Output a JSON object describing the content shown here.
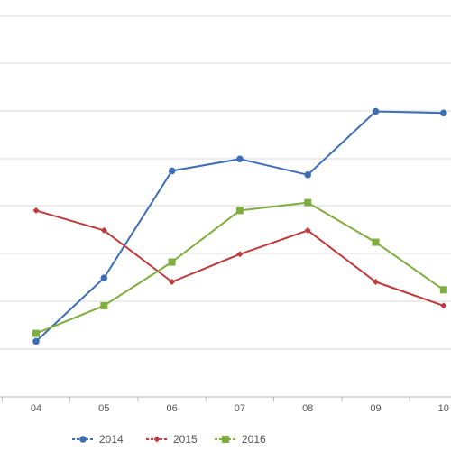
{
  "chart_data": {
    "type": "line",
    "categories": [
      "04",
      "05",
      "06",
      "07",
      "08",
      "09",
      "10"
    ],
    "series": [
      {
        "name": "2014",
        "color": "#3d6eb5",
        "marker": "circle",
        "values": [
          1.2,
          2.0,
          3.35,
          3.5,
          3.3,
          4.1,
          4.08
        ]
      },
      {
        "name": "2015",
        "color": "#c0393b",
        "marker": "diamond",
        "values": [
          2.85,
          2.6,
          1.95,
          2.3,
          2.6,
          1.95,
          1.65
        ]
      },
      {
        "name": "2016",
        "color": "#7fad3f",
        "marker": "square",
        "values": [
          1.3,
          1.65,
          2.2,
          2.85,
          2.95,
          2.45,
          1.85
        ]
      }
    ],
    "ylim": [
      0.5,
      5.3
    ],
    "grid": true,
    "legend_position": "bottom"
  }
}
